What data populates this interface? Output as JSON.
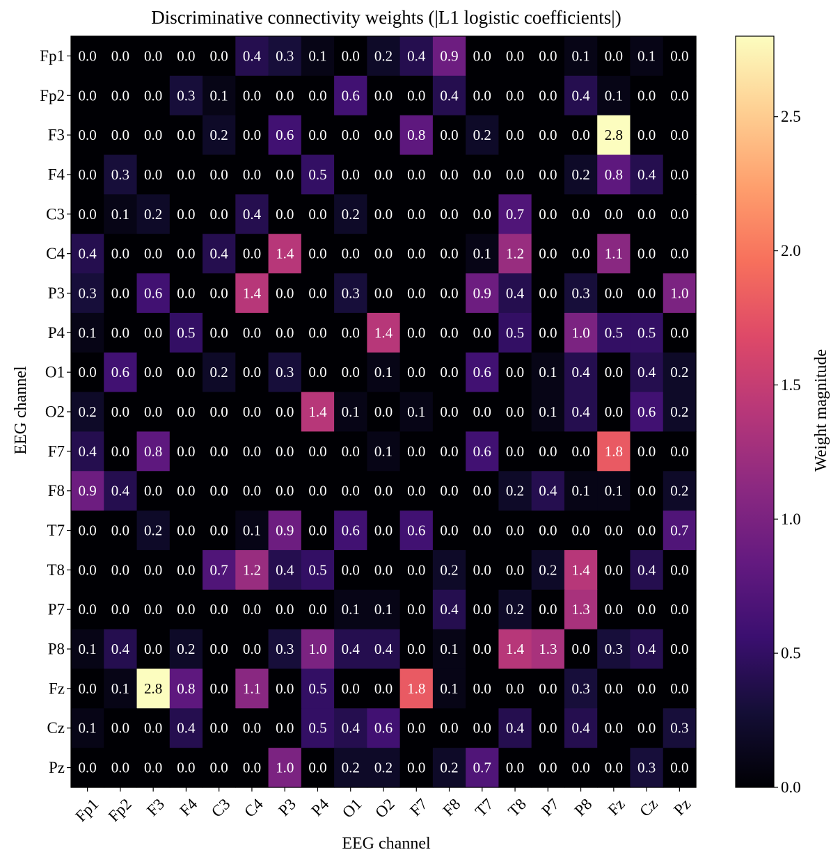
{
  "chart_data": {
    "type": "heatmap",
    "title": "Discriminative connectivity weights (|L1 logistic coefficients|)",
    "xlabel": "EEG channel",
    "ylabel": "EEG channel",
    "colorbar_label": "Weight magnitude",
    "colormap": "magma",
    "vmin": 0.0,
    "vmax": 2.8,
    "colorbar_ticks": [
      "0.0",
      "0.5",
      "1.0",
      "1.5",
      "2.0",
      "2.5"
    ],
    "x_labels": [
      "Fp1",
      "Fp2",
      "F3",
      "F4",
      "C3",
      "C4",
      "P3",
      "P4",
      "O1",
      "O2",
      "F7",
      "F8",
      "T7",
      "T8",
      "P7",
      "P8",
      "Fz",
      "Cz",
      "Pz"
    ],
    "y_labels": [
      "Fp1",
      "Fp2",
      "F3",
      "F4",
      "C3",
      "C4",
      "P3",
      "P4",
      "O1",
      "O2",
      "F7",
      "F8",
      "T7",
      "T8",
      "P7",
      "P8",
      "Fz",
      "Cz",
      "Pz"
    ],
    "values": [
      [
        0.0,
        0.0,
        0.0,
        0.0,
        0.0,
        0.4,
        0.3,
        0.1,
        0.0,
        0.2,
        0.4,
        0.9,
        0.0,
        0.0,
        0.0,
        0.1,
        0.0,
        0.1,
        0.0
      ],
      [
        0.0,
        0.0,
        0.0,
        0.3,
        0.1,
        0.0,
        0.0,
        0.0,
        0.6,
        0.0,
        0.0,
        0.4,
        0.0,
        0.0,
        0.0,
        0.4,
        0.1,
        0.0,
        0.0
      ],
      [
        0.0,
        0.0,
        0.0,
        0.0,
        0.2,
        0.0,
        0.6,
        0.0,
        0.0,
        0.0,
        0.8,
        0.0,
        0.2,
        0.0,
        0.0,
        0.0,
        2.8,
        0.0,
        0.0
      ],
      [
        0.0,
        0.3,
        0.0,
        0.0,
        0.0,
        0.0,
        0.0,
        0.5,
        0.0,
        0.0,
        0.0,
        0.0,
        0.0,
        0.0,
        0.0,
        0.2,
        0.8,
        0.4,
        0.0
      ],
      [
        0.0,
        0.1,
        0.2,
        0.0,
        0.0,
        0.4,
        0.0,
        0.0,
        0.2,
        0.0,
        0.0,
        0.0,
        0.0,
        0.7,
        0.0,
        0.0,
        0.0,
        0.0,
        0.0
      ],
      [
        0.4,
        0.0,
        0.0,
        0.0,
        0.4,
        0.0,
        1.4,
        0.0,
        0.0,
        0.0,
        0.0,
        0.0,
        0.1,
        1.2,
        0.0,
        0.0,
        1.1,
        0.0,
        0.0
      ],
      [
        0.3,
        0.0,
        0.6,
        0.0,
        0.0,
        1.4,
        0.0,
        0.0,
        0.3,
        0.0,
        0.0,
        0.0,
        0.9,
        0.4,
        0.0,
        0.3,
        0.0,
        0.0,
        1.0
      ],
      [
        0.1,
        0.0,
        0.0,
        0.5,
        0.0,
        0.0,
        0.0,
        0.0,
        0.0,
        1.4,
        0.0,
        0.0,
        0.0,
        0.5,
        0.0,
        1.0,
        0.5,
        0.5,
        0.0
      ],
      [
        0.0,
        0.6,
        0.0,
        0.0,
        0.2,
        0.0,
        0.3,
        0.0,
        0.0,
        0.1,
        0.0,
        0.0,
        0.6,
        0.0,
        0.1,
        0.4,
        0.0,
        0.4,
        0.2
      ],
      [
        0.2,
        0.0,
        0.0,
        0.0,
        0.0,
        0.0,
        0.0,
        1.4,
        0.1,
        0.0,
        0.1,
        0.0,
        0.0,
        0.0,
        0.1,
        0.4,
        0.0,
        0.6,
        0.2
      ],
      [
        0.4,
        0.0,
        0.8,
        0.0,
        0.0,
        0.0,
        0.0,
        0.0,
        0.0,
        0.1,
        0.0,
        0.0,
        0.6,
        0.0,
        0.0,
        0.0,
        1.8,
        0.0,
        0.0
      ],
      [
        0.9,
        0.4,
        0.0,
        0.0,
        0.0,
        0.0,
        0.0,
        0.0,
        0.0,
        0.0,
        0.0,
        0.0,
        0.0,
        0.2,
        0.4,
        0.1,
        0.1,
        0.0,
        0.2
      ],
      [
        0.0,
        0.0,
        0.2,
        0.0,
        0.0,
        0.1,
        0.9,
        0.0,
        0.6,
        0.0,
        0.6,
        0.0,
        0.0,
        0.0,
        0.0,
        0.0,
        0.0,
        0.0,
        0.7
      ],
      [
        0.0,
        0.0,
        0.0,
        0.0,
        0.7,
        1.2,
        0.4,
        0.5,
        0.0,
        0.0,
        0.0,
        0.2,
        0.0,
        0.0,
        0.2,
        1.4,
        0.0,
        0.4,
        0.0
      ],
      [
        0.0,
        0.0,
        0.0,
        0.0,
        0.0,
        0.0,
        0.0,
        0.0,
        0.1,
        0.1,
        0.0,
        0.4,
        0.0,
        0.2,
        0.0,
        1.3,
        0.0,
        0.0,
        0.0
      ],
      [
        0.1,
        0.4,
        0.0,
        0.2,
        0.0,
        0.0,
        0.3,
        1.0,
        0.4,
        0.4,
        0.0,
        0.1,
        0.0,
        1.4,
        1.3,
        0.0,
        0.3,
        0.4,
        0.0
      ],
      [
        0.0,
        0.1,
        2.8,
        0.8,
        0.0,
        1.1,
        0.0,
        0.5,
        0.0,
        0.0,
        1.8,
        0.1,
        0.0,
        0.0,
        0.0,
        0.3,
        0.0,
        0.0,
        0.0
      ],
      [
        0.1,
        0.0,
        0.0,
        0.4,
        0.0,
        0.0,
        0.0,
        0.5,
        0.4,
        0.6,
        0.0,
        0.0,
        0.0,
        0.4,
        0.0,
        0.4,
        0.0,
        0.0,
        0.3
      ],
      [
        0.0,
        0.0,
        0.0,
        0.0,
        0.0,
        0.0,
        1.0,
        0.0,
        0.2,
        0.2,
        0.0,
        0.2,
        0.7,
        0.0,
        0.0,
        0.0,
        0.0,
        0.3,
        0.0
      ]
    ]
  }
}
